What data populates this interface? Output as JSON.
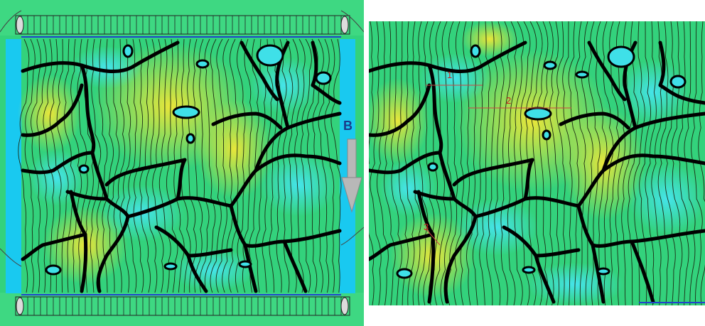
{
  "left_panel": {
    "field_label": "B",
    "colors": {
      "background_field": "#2fd67a",
      "high_field": "#e8e63a",
      "low_field": "#3fe0e8",
      "pole_blue": "#19c9f0",
      "boundary": "#000000",
      "flux_line": "#1a2a10",
      "arrow": "#b4b4b4"
    }
  },
  "right_panel": {
    "markers": [
      {
        "label": "1"
      },
      {
        "label": "2"
      },
      {
        "label": "3"
      }
    ],
    "marker_color": "#cc2222"
  }
}
